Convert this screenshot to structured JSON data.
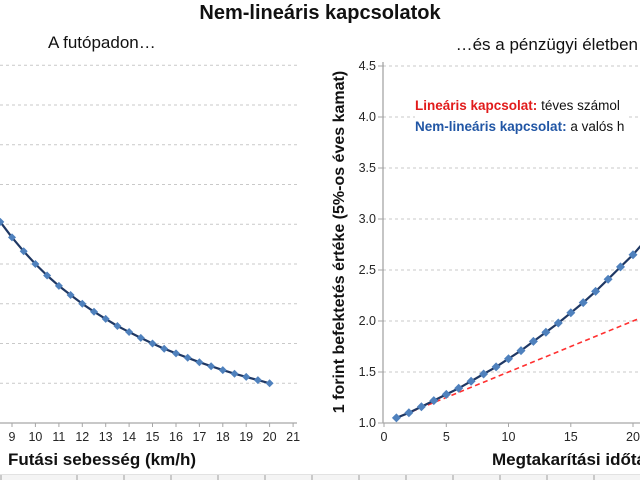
{
  "title": "Nem-lineáris kapcsolatok",
  "colors": {
    "line_navy": "#1F3864",
    "marker_blue": "#4F81BD",
    "linear_red": "#FF3030",
    "legend_red": "#E11B1B",
    "legend_blue": "#2156A5",
    "gridline": "#C9C9C9",
    "axis": "#A6A6A6",
    "tick_text": "#262626"
  },
  "chart_data": [
    {
      "type": "line",
      "title": "A futópadon…",
      "xlabel": "Futási sebesség (km/h)",
      "ylabel": "",
      "note": "Left portion of panel (y-axis and its labels) is cropped off the image edge; y gridlines are unlabeled.",
      "x_ticks": [
        9,
        10,
        11,
        12,
        13,
        14,
        15,
        16,
        17,
        18,
        19,
        20,
        21
      ],
      "x_visible_range": [
        8.5,
        21.7
      ],
      "y_gridline_values": [
        3,
        4,
        5,
        6,
        7,
        8,
        9,
        10,
        11
      ],
      "grid": "dashed-horizontal",
      "series": [
        {
          "name": "pace-curve",
          "marker": "diamond",
          "x": [
            8.5,
            9,
            9.5,
            10,
            10.5,
            11,
            11.5,
            12,
            12.5,
            13,
            13.5,
            14,
            14.5,
            15,
            15.5,
            16,
            16.5,
            17,
            17.5,
            18,
            18.5,
            19,
            19.5,
            20
          ],
          "y": [
            7.06,
            6.67,
            6.32,
            6.0,
            5.71,
            5.45,
            5.22,
            5.0,
            4.8,
            4.62,
            4.44,
            4.29,
            4.14,
            4.0,
            3.87,
            3.75,
            3.64,
            3.53,
            3.43,
            3.33,
            3.24,
            3.16,
            3.08,
            3.0
          ]
        }
      ]
    },
    {
      "type": "line",
      "title": "…és a pénzügyi életben",
      "xlabel": "Megtakarítási időtáv (",
      "ylabel": "1 forint befektetés értéke (5%-os éves kamat)",
      "note": "Right edge of panel is cropped; x-axis label and legend text are clipped at the image edge.",
      "x_ticks": [
        0,
        5,
        10,
        15,
        20
      ],
      "x_visible_range": [
        0,
        20.6
      ],
      "y_ticks": [
        "1.0",
        "1.5",
        "2.0",
        "2.5",
        "3.0",
        "3.5",
        "4.0",
        "4.5"
      ],
      "ylim": [
        1.0,
        4.5
      ],
      "grid": "dashed-horizontal",
      "series": [
        {
          "name": "Lineáris kapcsolat",
          "style": "dashed",
          "marker": "none",
          "x": [
            1,
            21
          ],
          "y": [
            1.05,
            2.05
          ]
        },
        {
          "name": "Nem-lineáris kapcsolat",
          "marker": "diamond",
          "marker_max_x": 20,
          "x": [
            1,
            2,
            3,
            4,
            5,
            6,
            7,
            8,
            9,
            10,
            11,
            12,
            13,
            14,
            15,
            16,
            17,
            18,
            19,
            20,
            21
          ],
          "y": [
            1.05,
            1.1,
            1.16,
            1.22,
            1.28,
            1.34,
            1.41,
            1.48,
            1.55,
            1.63,
            1.71,
            1.8,
            1.89,
            1.98,
            2.08,
            2.18,
            2.29,
            2.41,
            2.53,
            2.65,
            2.79
          ]
        }
      ],
      "legend": [
        {
          "label": "Lineáris kapcsolat:",
          "text": " téves számol",
          "color": "#E11B1B"
        },
        {
          "label": "Nem-lineáris kapcsolat:",
          "text": " a valós h",
          "color": "#2156A5"
        }
      ],
      "legend_position": "inside-top-left"
    }
  ]
}
